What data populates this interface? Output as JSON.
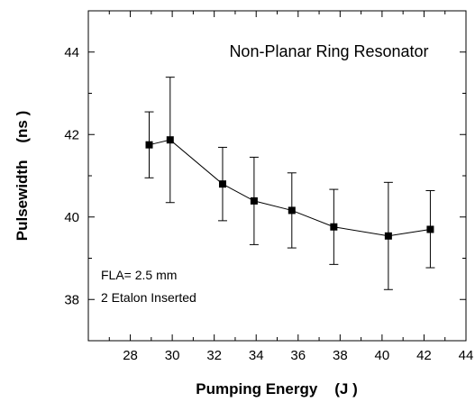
{
  "chart_data": {
    "type": "scatter",
    "title": "Non-Planar Ring Resonator",
    "xlabel": "Pumping Energy    (J )",
    "ylabel": "Pulsewidth    (ns )",
    "xlim": [
      26,
      44
    ],
    "ylim": [
      37,
      45
    ],
    "x_ticks": [
      28,
      30,
      32,
      34,
      36,
      38,
      40,
      42,
      44
    ],
    "y_ticks": [
      38,
      40,
      42,
      44
    ],
    "grid": false,
    "legend": "none",
    "marker": "square",
    "line": true,
    "annotations": [
      "FLA= 2.5 mm",
      "2 Etalon Inserted"
    ],
    "series": [
      {
        "x": [
          28.9,
          29.9,
          32.4,
          33.9,
          35.7,
          37.7,
          40.3,
          42.3
        ],
        "y": [
          41.75,
          41.87,
          40.8,
          40.39,
          40.16,
          39.76,
          39.54,
          39.7
        ],
        "err_low": [
          40.95,
          40.35,
          39.91,
          39.33,
          39.25,
          38.85,
          38.24,
          38.77
        ],
        "err_high": [
          42.55,
          43.39,
          41.69,
          41.45,
          41.07,
          40.67,
          40.84,
          40.64
        ]
      }
    ]
  }
}
